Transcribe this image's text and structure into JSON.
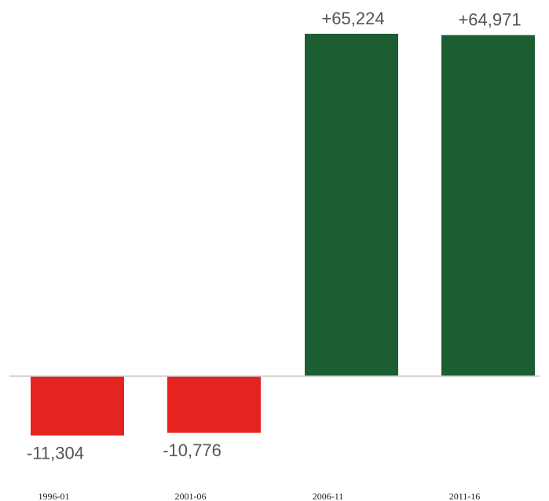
{
  "chart_data": {
    "type": "bar",
    "title": "",
    "xlabel": "",
    "ylabel": "",
    "categories": [
      "1996-01",
      "2001-06",
      "2006-11",
      "2011-16"
    ],
    "values": [
      -11304,
      -10776,
      65224,
      64971
    ],
    "data_labels": [
      "-11,304",
      "-10,776",
      "+65,224",
      "+64,971"
    ],
    "colors": {
      "negative": "#e52421",
      "positive": "#1c5e32",
      "baseline": "#c8c8c8"
    },
    "ylim": [
      -13000,
      67000
    ],
    "grid": false,
    "legend": "none"
  }
}
